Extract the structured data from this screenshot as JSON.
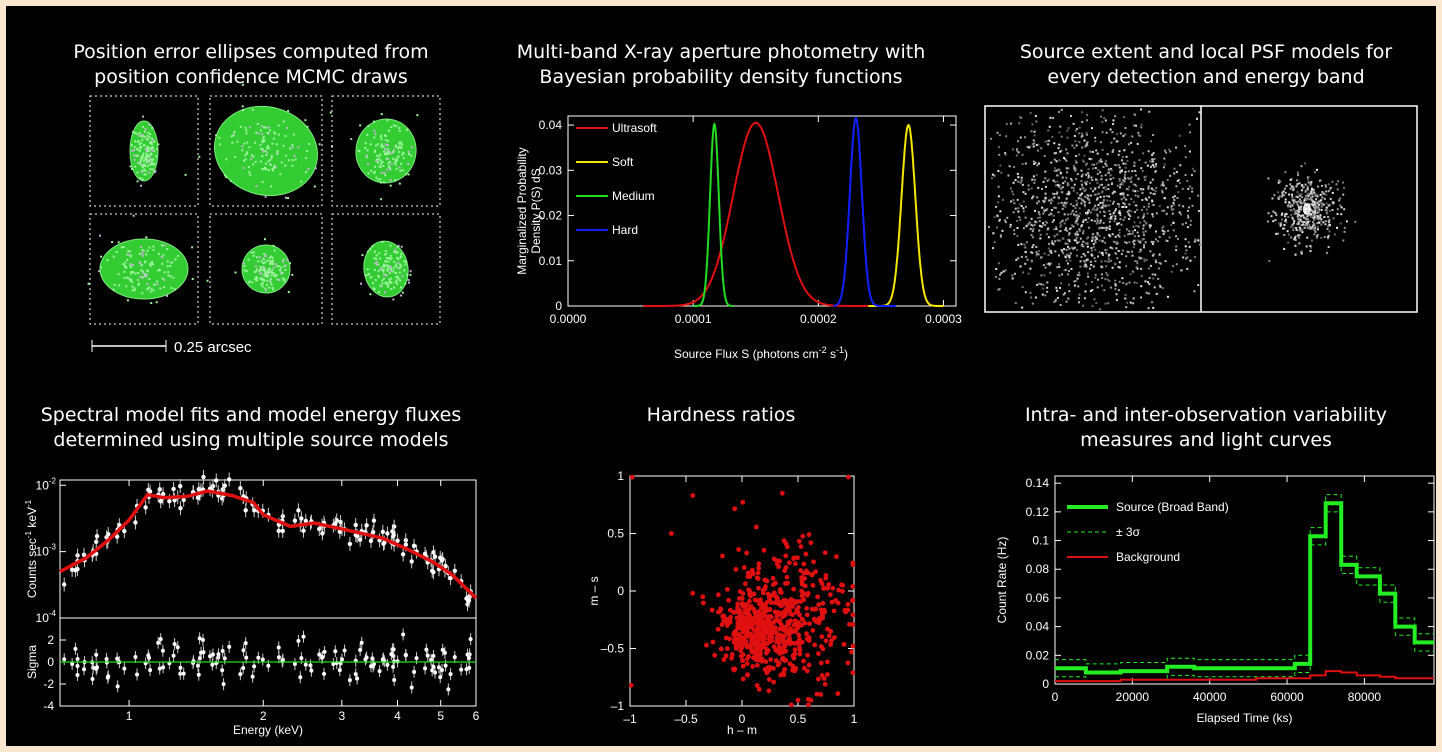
{
  "panels": {
    "ellipses": {
      "title": [
        "Position error ellipses computed from",
        "position confidence MCMC draws"
      ],
      "scalebar_label": "0.25 arcsec"
    },
    "photometry": {
      "title": [
        "Multi-band X-ray aperture photometry with",
        "Bayesian probability density functions"
      ]
    },
    "psf": {
      "title": [
        "Source extent and local PSF models for",
        "every detection and energy band"
      ]
    },
    "spectral": {
      "title": [
        "Spectral model fits and model energy fluxes",
        "determined using multiple source models"
      ]
    },
    "hardness": {
      "title": [
        "Hardness ratios"
      ]
    },
    "variability": {
      "title": [
        "Intra- and inter-observation variability",
        "measures and light curves"
      ]
    }
  },
  "colors": {
    "background": "#000000",
    "border": "#fbe7cf",
    "ultrasoft": "#e01010",
    "soft": "#f5e600",
    "medium": "#22dd22",
    "hard": "#1020ff",
    "ellipse": "#33cc33",
    "ellipse_fill": "#9df59d",
    "source": "#22ee22",
    "background_line": "#dd1111"
  },
  "chart_data": [
    {
      "id": "photometry",
      "type": "line",
      "xlabel": "Source Flux S (photons cm^-2 s^-1)",
      "ylabel": [
        "Marginalized Probability",
        "Density P(S) dS"
      ],
      "xlim": [
        0,
        0.00031
      ],
      "ylim": [
        0,
        0.042
      ],
      "xticks": [
        "0.0000",
        "0.0001",
        "0.0002",
        "0.0003"
      ],
      "xtick_values": [
        0,
        0.0001,
        0.0002,
        0.0003
      ],
      "yticks": [
        "0",
        "0.01",
        "0.02",
        "0.03",
        "0.04"
      ],
      "ytick_values": [
        0,
        0.01,
        0.02,
        0.03,
        0.04
      ],
      "legend_position": "top-left",
      "series": [
        {
          "name": "Ultrasoft",
          "peak_x": 0.00015,
          "peak_y": 0.0405,
          "width": 1.8e-05,
          "xmin": 6e-05,
          "xmax": 0.00024
        },
        {
          "name": "Soft",
          "peak_x": 0.000272,
          "peak_y": 0.04,
          "width": 5.5e-06,
          "xmin": 0.00024,
          "xmax": 0.0003
        },
        {
          "name": "Medium",
          "peak_x": 0.000117,
          "peak_y": 0.0402,
          "width": 3.5e-06,
          "xmin": 0.0001,
          "xmax": 0.000132
        },
        {
          "name": "Hard",
          "peak_x": 0.00023,
          "peak_y": 0.0415,
          "width": 4.8e-06,
          "xmin": 0.000212,
          "xmax": 0.000262
        }
      ]
    },
    {
      "id": "spectral",
      "type": "line",
      "xlabel": "Energy (keV)",
      "ylabel": "Counts sec^-1 keV^-1",
      "resid_label": "Sigma",
      "xscale": "log",
      "yscale": "log",
      "xlim": [
        0.7,
        6
      ],
      "ylim": [
        0.0001,
        0.012
      ],
      "resid_ylim": [
        -4,
        4
      ],
      "xticks": [
        "1",
        "2",
        "3",
        "4",
        "5",
        "6"
      ],
      "xtick_values": [
        1,
        2,
        3,
        4,
        5,
        6
      ],
      "yticks": [
        "10^-2",
        "10^-3",
        "10^-4"
      ],
      "ytick_values": [
        0.01,
        0.001,
        0.0001
      ],
      "resid_yticks": [
        "2",
        "0",
        "-2",
        "-4"
      ],
      "resid_ytick_values": [
        2,
        0,
        -2,
        -4
      ],
      "model": {
        "x": [
          0.7,
          0.8,
          0.9,
          1.0,
          1.1,
          1.2,
          1.35,
          1.5,
          1.7,
          1.9,
          2.0,
          2.3,
          2.6,
          3.0,
          3.3,
          3.7,
          4.2,
          4.8,
          5.3,
          6.0
        ],
        "y": [
          0.0005,
          0.0008,
          0.0015,
          0.003,
          0.0072,
          0.0065,
          0.0068,
          0.0082,
          0.007,
          0.0055,
          0.0036,
          0.0024,
          0.0027,
          0.0022,
          0.0019,
          0.0016,
          0.0011,
          0.0007,
          0.00045,
          0.0002
        ]
      }
    },
    {
      "id": "hardness",
      "type": "scatter",
      "xlabel": "h – m",
      "ylabel": "m – s",
      "xlim": [
        -1,
        1
      ],
      "ylim": [
        -1,
        1
      ],
      "xticks": [
        "–1",
        "–0.5",
        "0",
        "0.5",
        "1"
      ],
      "xtick_values": [
        -1,
        -0.5,
        0,
        0.5,
        1
      ],
      "yticks": [
        "–1",
        "–0.5",
        "0",
        "0.5",
        "1"
      ],
      "ytick_values": [
        -1,
        -0.5,
        0,
        0.5,
        1
      ],
      "clusters": [
        {
          "cx": 0.15,
          "cy": -0.35,
          "sx": 0.16,
          "sy": 0.14,
          "n": 330
        },
        {
          "cx": 0.38,
          "cy": -0.2,
          "sx": 0.3,
          "sy": 0.32,
          "n": 360
        }
      ],
      "outliers": [
        [
          -0.44,
          0.83
        ],
        [
          -0.63,
          0.5
        ],
        [
          -0.44,
          -0.02
        ],
        [
          -0.35,
          -0.05
        ],
        [
          -0.99,
          -0.82
        ],
        [
          -0.98,
          0.99
        ],
        [
          0.95,
          0.99
        ],
        [
          0.36,
          0.85
        ]
      ]
    },
    {
      "id": "variability",
      "type": "line",
      "xlabel": "Elapsed Time (ks)",
      "ylabel": "Count Rate (Hz)",
      "xlim": [
        0,
        98000
      ],
      "ylim": [
        0,
        0.145
      ],
      "xticks": [
        "0",
        "20000",
        "40000",
        "60000",
        "80000"
      ],
      "xtick_values": [
        0,
        20000,
        40000,
        60000,
        80000
      ],
      "yticks": [
        "0",
        "0.02",
        "0.04",
        "0.06",
        "0.08",
        "0.1",
        "0.12",
        "0.14"
      ],
      "ytick_values": [
        0,
        0.02,
        0.04,
        0.06,
        0.08,
        0.1,
        0.12,
        0.14
      ],
      "legend_position": "top-left",
      "series": [
        {
          "name": "Source (Broad Band)",
          "x": [
            0,
            8000,
            8000,
            17000,
            17000,
            29000,
            29000,
            36000,
            36000,
            52000,
            52000,
            62000,
            62000,
            66000,
            66000,
            70000,
            70000,
            74000,
            74000,
            78000,
            78000,
            84000,
            84000,
            88000,
            88000,
            93000,
            93000,
            98000
          ],
          "y": [
            0.011,
            0.011,
            0.008,
            0.008,
            0.009,
            0.009,
            0.012,
            0.012,
            0.011,
            0.011,
            0.011,
            0.011,
            0.014,
            0.014,
            0.103,
            0.103,
            0.126,
            0.126,
            0.083,
            0.083,
            0.075,
            0.075,
            0.063,
            0.063,
            0.04,
            0.04,
            0.029,
            0.029
          ]
        },
        {
          "name": "± 3σ",
          "offset": 0.006
        },
        {
          "name": "Background",
          "x": [
            0,
            8000,
            8000,
            17000,
            17000,
            29000,
            29000,
            36000,
            36000,
            52000,
            52000,
            62000,
            62000,
            66000,
            66000,
            70000,
            70000,
            74000,
            74000,
            78000,
            78000,
            84000,
            84000,
            88000,
            88000,
            93000,
            93000,
            98000
          ],
          "y": [
            0.002,
            0.002,
            0.002,
            0.002,
            0.003,
            0.003,
            0.003,
            0.003,
            0.003,
            0.003,
            0.004,
            0.004,
            0.004,
            0.004,
            0.006,
            0.006,
            0.009,
            0.009,
            0.008,
            0.008,
            0.006,
            0.006,
            0.005,
            0.005,
            0.004,
            0.004,
            0.004,
            0.004
          ]
        }
      ]
    }
  ]
}
